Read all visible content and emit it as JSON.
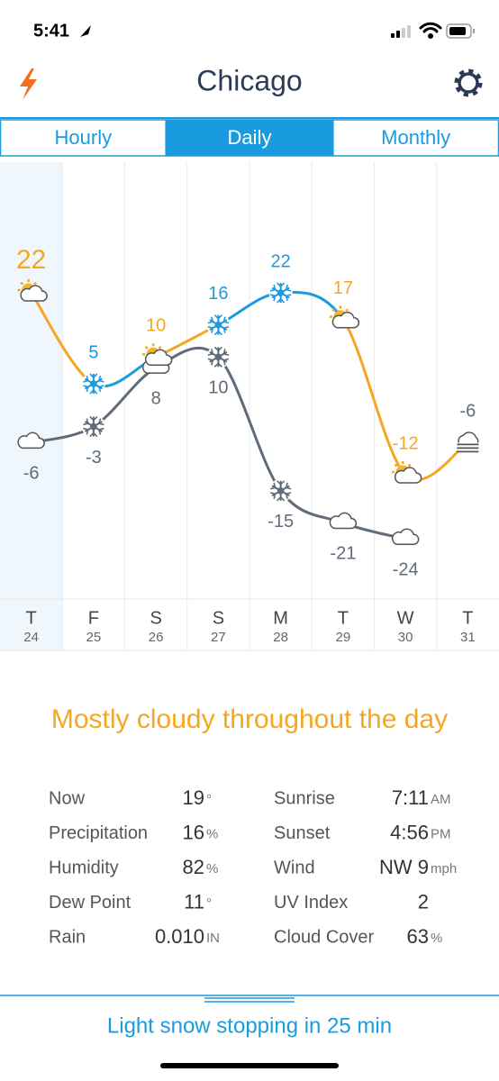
{
  "status_bar": {
    "time": "5:41"
  },
  "header": {
    "title": "Chicago"
  },
  "tabs": {
    "items": [
      "Hourly",
      "Daily",
      "Monthly"
    ],
    "selected": 1
  },
  "chart_data": {
    "type": "line",
    "categories": [
      "T",
      "F",
      "S",
      "S",
      "M",
      "T",
      "W",
      "T"
    ],
    "dates": [
      24,
      25,
      26,
      27,
      28,
      29,
      30,
      31
    ],
    "selected_day": 0,
    "ylim": [
      -35,
      45
    ],
    "series": [
      {
        "values": [
          22,
          5,
          10,
          16,
          22,
          17,
          -12,
          -6
        ],
        "colors": [
          "#f5a623",
          "#1a9be0",
          "#f5a623",
          "#1a9be0",
          "#1a9be0",
          "#f5a623",
          "#f5a623",
          "#5f6b78"
        ],
        "icons": [
          "sun-cloud",
          "snow",
          "sun-cloud",
          "snow",
          "snow",
          "sun-cloud",
          "sun-cloud",
          "fog"
        ]
      },
      {
        "values": [
          -6,
          -3,
          8,
          10,
          -15,
          -21,
          -24,
          null
        ],
        "color": "#5f6b78",
        "icons": [
          "cloud",
          "snow",
          "cloud",
          "snow",
          "snow",
          "cloud",
          "cloud",
          null
        ]
      }
    ]
  },
  "summary": "Mostly cloudy throughout the day",
  "details": {
    "left": [
      {
        "label": "Now",
        "value": "19",
        "unit": "°"
      },
      {
        "label": "Precipitation",
        "value": "16",
        "unit": "%"
      },
      {
        "label": "Humidity",
        "value": "82",
        "unit": "%"
      },
      {
        "label": "Dew Point",
        "value": "11",
        "unit": "°"
      },
      {
        "label": "Rain",
        "value": "0.010",
        "unit": "IN"
      }
    ],
    "right": [
      {
        "label": "Sunrise",
        "value": "7:11",
        "unit": "AM"
      },
      {
        "label": "Sunset",
        "value": "4:56",
        "unit": "PM"
      },
      {
        "label": "Wind",
        "value": "NW 9",
        "unit": "mph"
      },
      {
        "label": "UV Index",
        "value": "2",
        "unit": null
      },
      {
        "label": "Cloud Cover",
        "value": "63",
        "unit": "%"
      }
    ]
  },
  "footer": "Light snow stopping in 25 min"
}
